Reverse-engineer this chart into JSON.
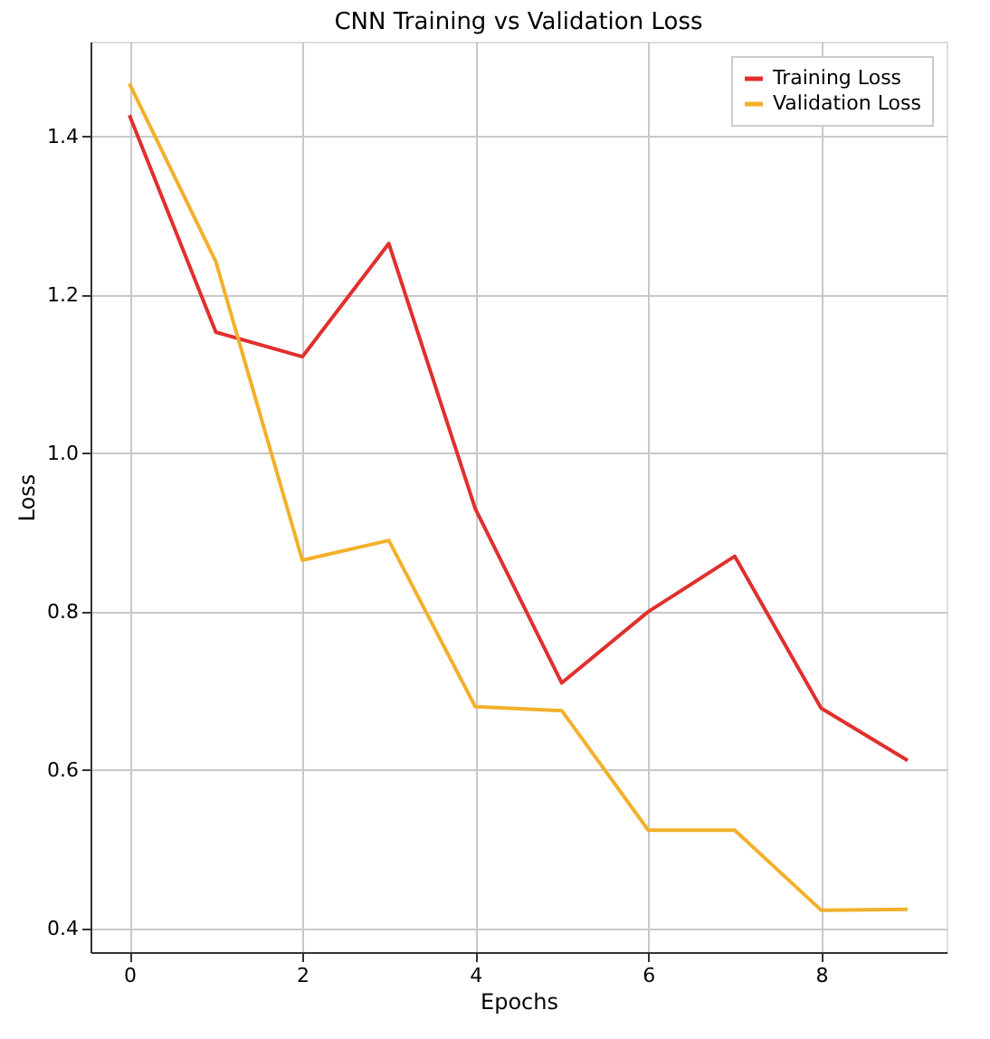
{
  "chart_data": {
    "type": "line",
    "title": "CNN Training vs Validation Loss",
    "xlabel": "Epochs",
    "ylabel": "Loss",
    "x": [
      0,
      1,
      2,
      3,
      4,
      5,
      6,
      7,
      8,
      9
    ],
    "series": [
      {
        "name": "Training Loss",
        "color": "#e0302e",
        "values": [
          1.427,
          1.153,
          1.122,
          1.265,
          0.93,
          0.71,
          0.8,
          0.87,
          0.678,
          0.612
        ]
      },
      {
        "name": "Validation Loss",
        "color": "#f2b02c",
        "values": [
          1.467,
          1.242,
          0.865,
          0.89,
          0.68,
          0.675,
          0.524,
          0.524,
          0.423,
          0.424
        ]
      }
    ],
    "xlim": [
      -0.45,
      9.45
    ],
    "ylim": [
      0.37,
      1.52
    ],
    "xticks": [
      0,
      2,
      4,
      6,
      8
    ],
    "yticks": [
      0.4,
      0.6,
      0.8,
      {
        "value": 1.0,
        "label": "1.0"
      },
      1.2,
      1.4
    ],
    "grid": true,
    "legend": "top right",
    "marker": "none",
    "line_style": "solid"
  }
}
